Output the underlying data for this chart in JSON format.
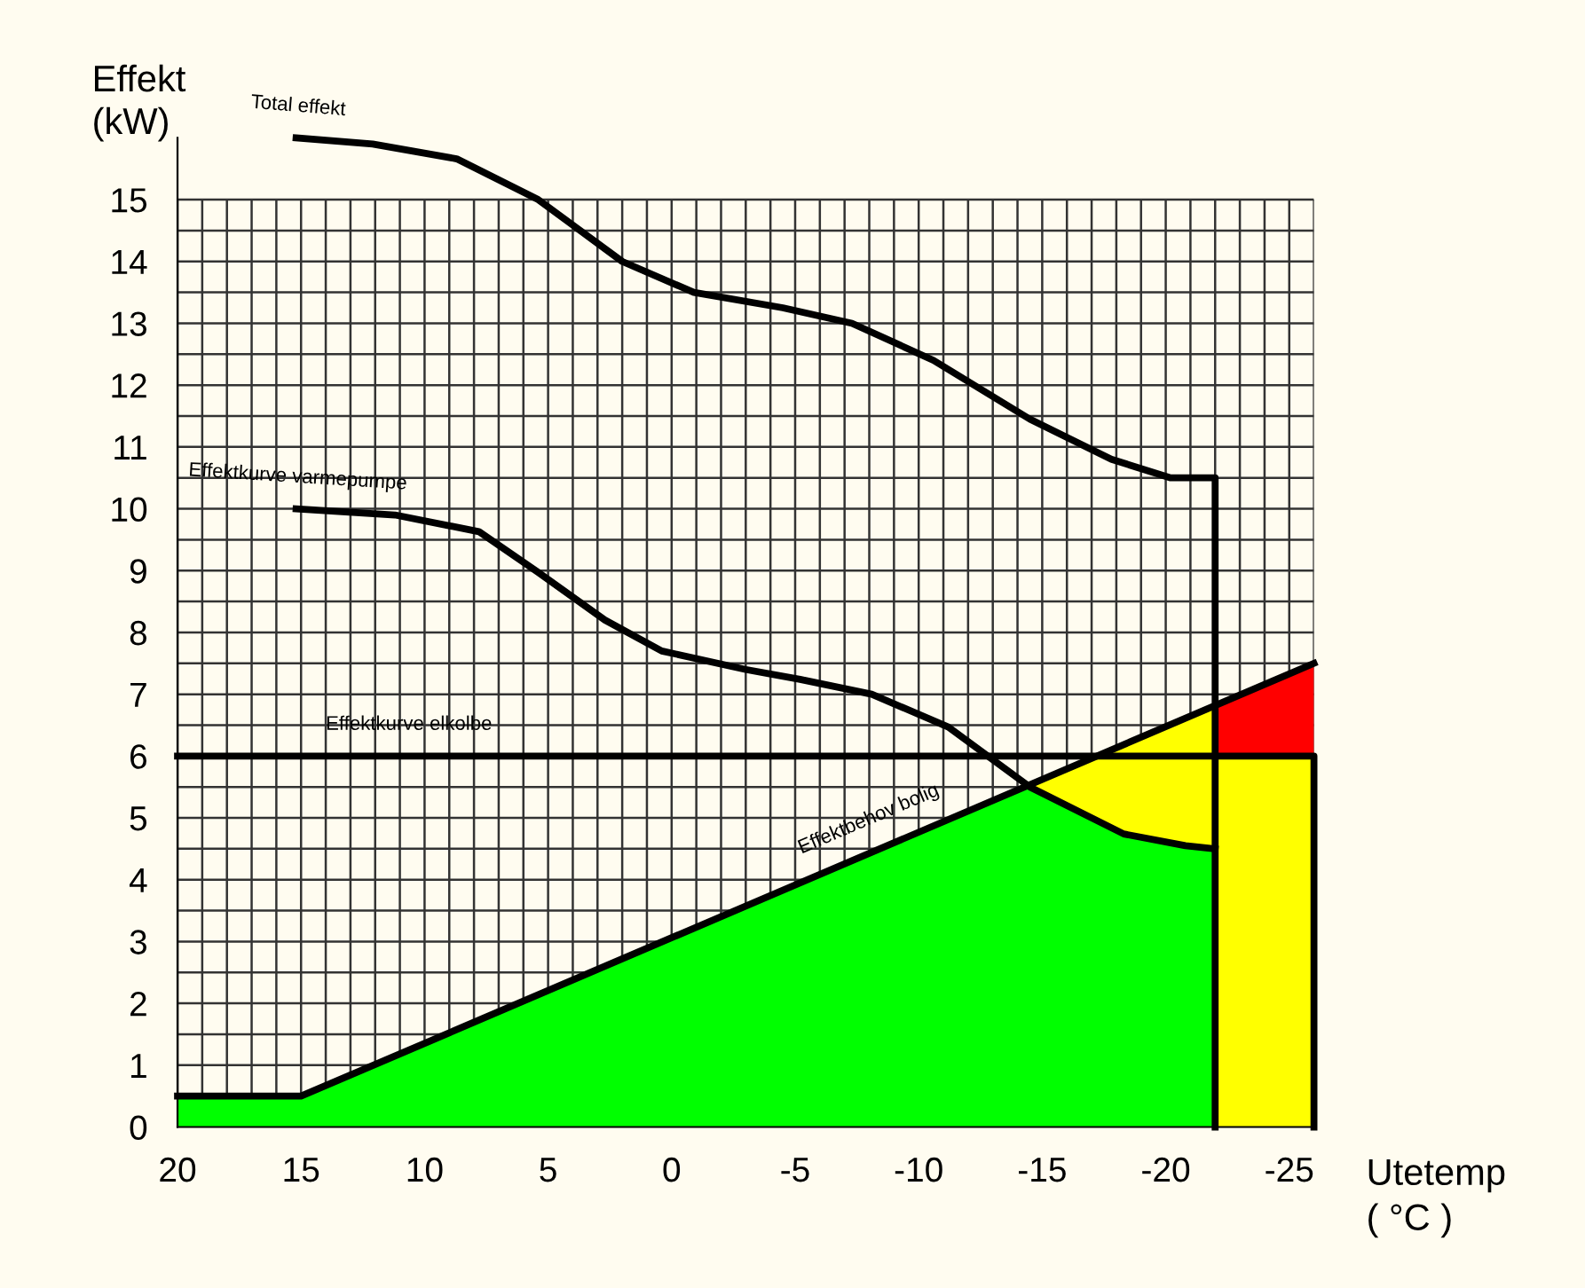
{
  "chart_data": {
    "type": "area",
    "ylabel": "Effekt\n(kW)",
    "xlabel": "Utetemp\n( °C )",
    "xlim": [
      20,
      -26
    ],
    "ylim": [
      0,
      16
    ],
    "xticks": [
      20,
      15,
      10,
      5,
      0,
      -5,
      -10,
      -15,
      -20,
      -25
    ],
    "yticks": [
      0,
      1,
      2,
      3,
      4,
      5,
      6,
      7,
      8,
      9,
      10,
      11,
      12,
      13,
      14,
      15
    ],
    "grid": true,
    "marker": "none",
    "line_style": "solid",
    "series": [
      {
        "color": "#ff0000",
        "x": [
          -22,
          -26
        ],
        "values": [
          6.82,
          7.5
        ]
      },
      {
        "color": "#ffff00",
        "x": [
          -14.5,
          -18.3,
          -20.8,
          -22,
          -22,
          -26
        ],
        "values": [
          5.5,
          6.19,
          6.61,
          6.82,
          6,
          6
        ]
      },
      {
        "color": "#00ff00",
        "x": [
          20,
          15,
          -14.5,
          -18.3,
          -20.8,
          -22
        ],
        "values": [
          0.5,
          0.5,
          5.5,
          4.74,
          4.55,
          4.5
        ]
      },
      {
        "type": "line",
        "color": "#000000",
        "x": [
          20,
          15,
          -26
        ],
        "values": [
          0.5,
          0.5,
          7.5
        ]
      },
      {
        "type": "line",
        "color": "#000000",
        "x": [
          20,
          -26,
          -26
        ],
        "values": [
          6,
          6,
          0
        ]
      },
      {
        "type": "line",
        "color": "#000000",
        "x": [
          15.2,
          12.1,
          8.7,
          5.4,
          2.0,
          -0.9,
          -4.5,
          -7.3,
          -10.6,
          -14.5,
          -17.8,
          -20.2,
          -22,
          -22
        ],
        "values": [
          16.0,
          15.9,
          15.66,
          15.0,
          14.0,
          13.5,
          13.25,
          13.0,
          12.4,
          11.45,
          10.8,
          10.5,
          10.5,
          0
        ]
      },
      {
        "type": "line",
        "color": "#000000",
        "x": [
          15.2,
          11.2,
          7.8,
          5.4,
          2.7,
          0.4,
          -3.0,
          -5.2,
          -8.1,
          -11.2,
          -14.5,
          -18.3,
          -20.8,
          -22
        ],
        "values": [
          10.0,
          9.9,
          9.63,
          8.97,
          8.2,
          7.7,
          7.4,
          7.24,
          7.0,
          6.47,
          5.5,
          4.74,
          4.55,
          4.5
        ]
      }
    ],
    "annotations": [
      {
        "text": "Total effekt",
        "x": 15.2,
        "y": 16.0
      },
      {
        "text": "Effektkurve varmepumpe",
        "x": 15.2,
        "y": 10.0
      },
      {
        "text": "Effektkurve elkolbe",
        "x": 14,
        "y": 6
      },
      {
        "text": "Effektbehov bolig",
        "x": -8.4,
        "y": 4.5
      }
    ]
  }
}
